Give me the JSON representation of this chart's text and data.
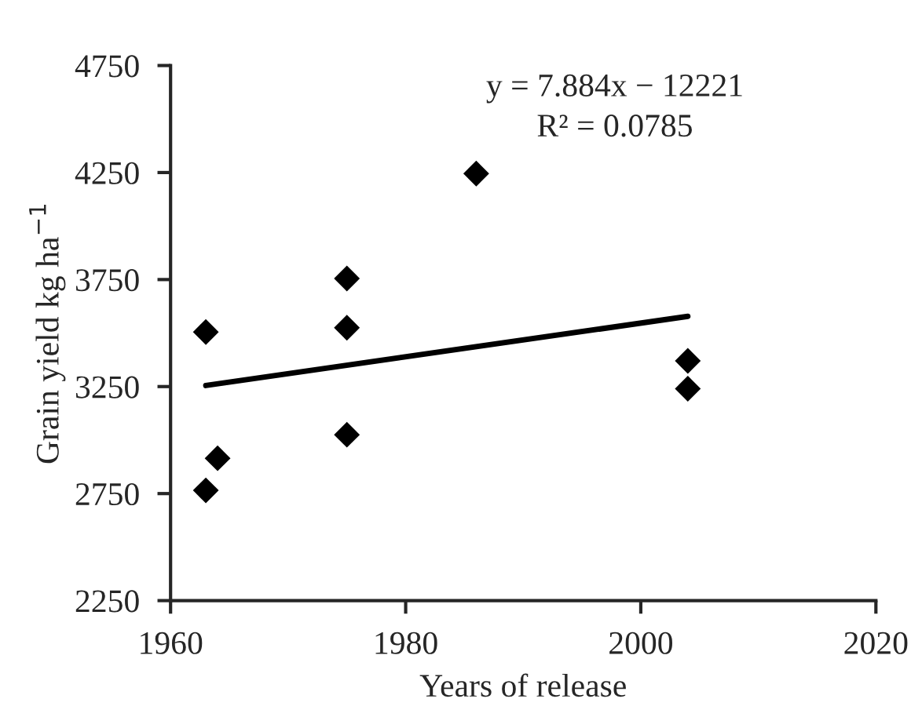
{
  "chart_data": {
    "type": "scatter",
    "xlabel": "Years of release",
    "ylabel": "Grain yield kg ha$^{−1}$",
    "annotations": [
      "y = 7.884x − 12221",
      "R² = 0.0785"
    ],
    "xlim": [
      1960,
      2020
    ],
    "xticks": [
      1960,
      1980,
      2000,
      2020
    ],
    "ylim": [
      2250,
      4750
    ],
    "yticks": [
      2250,
      2750,
      3250,
      3750,
      4250,
      4750
    ],
    "grid": false,
    "legend": false,
    "series": [
      {
        "marker": "diamond",
        "color": "#000000",
        "x": [
          1963,
          1963,
          1964,
          1975,
          1975,
          1975,
          1986,
          2004,
          2004
        ],
        "values": [
          3505,
          2765,
          2915,
          3755,
          3525,
          3025,
          4245,
          3370,
          3240
        ]
      },
      {
        "type": "line",
        "marker": "none",
        "color": "#000000",
        "line_style": "solid",
        "x": [
          1963,
          2004
        ],
        "values": [
          3255,
          3578
        ]
      }
    ]
  }
}
